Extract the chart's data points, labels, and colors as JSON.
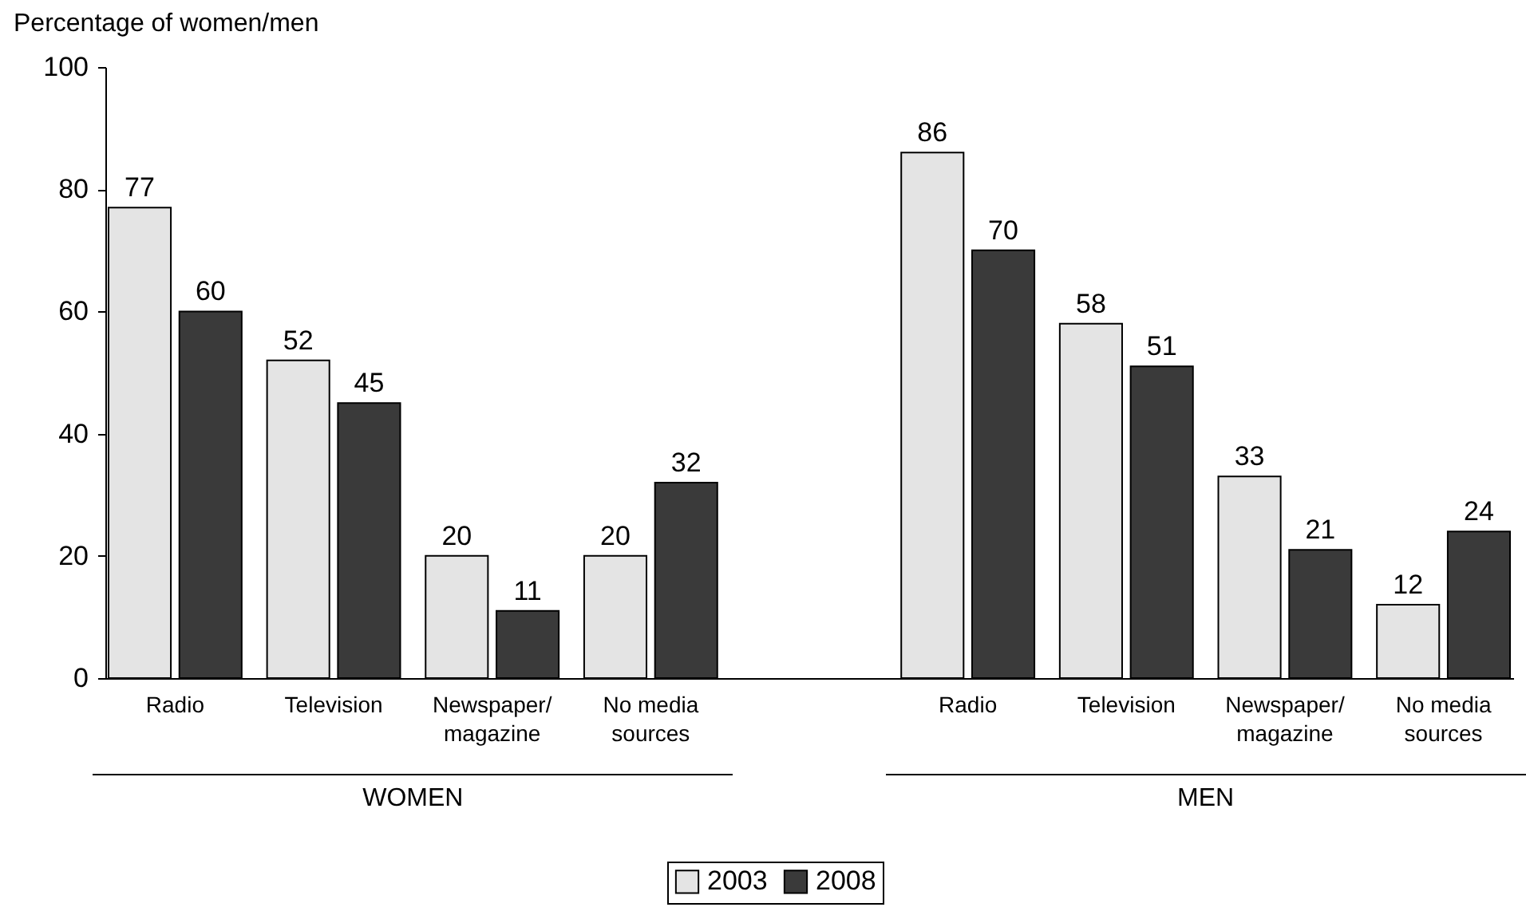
{
  "chart_data": {
    "type": "bar",
    "ylabel": "Percentage of women/men",
    "categories": [
      "Radio",
      "Television",
      "Newspaper/ magazine",
      "No media sources",
      null,
      "Radio",
      "Television",
      "Newspaper/ magazine",
      "No media sources"
    ],
    "series": [
      {
        "name": "2003",
        "color": "#e4e4e4",
        "values": [
          77,
          52,
          20,
          20,
          null,
          86,
          58,
          33,
          12
        ]
      },
      {
        "name": "2008",
        "color": "#3a3a3a",
        "values": [
          60,
          45,
          11,
          32,
          null,
          70,
          51,
          21,
          24
        ]
      }
    ],
    "ylim": [
      0,
      100
    ],
    "yticks": [
      0,
      20,
      40,
      60,
      80,
      100
    ],
    "grid": false,
    "data_labels": true,
    "legend": "bottom",
    "annotations": [
      "WOMEN",
      "MEN"
    ]
  }
}
